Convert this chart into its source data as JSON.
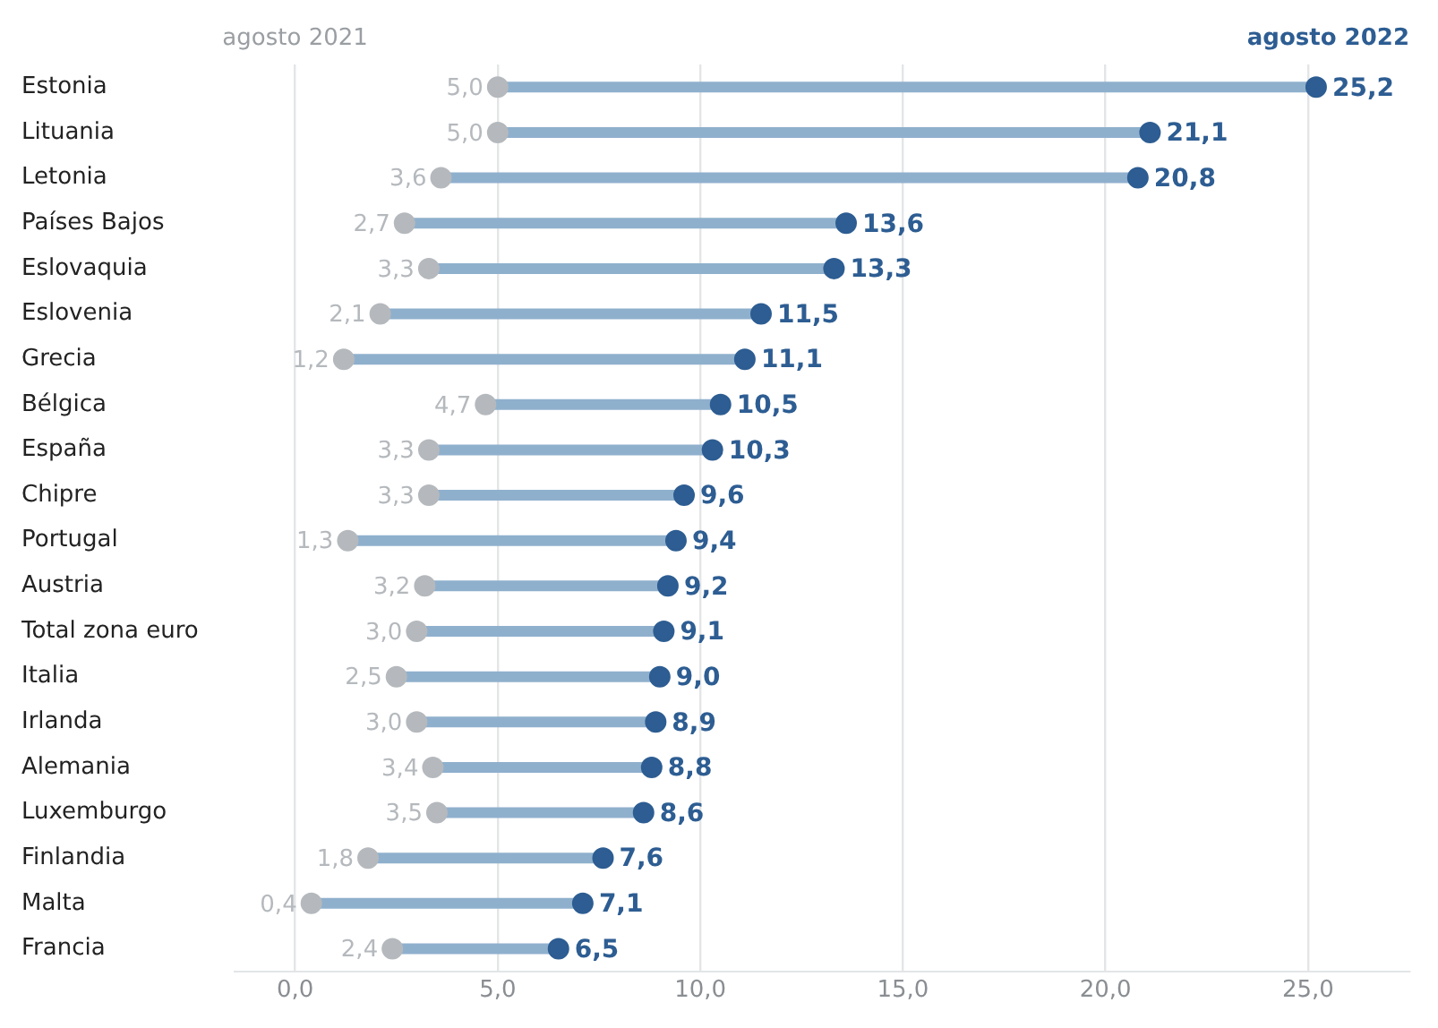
{
  "chart_data": {
    "type": "scatter",
    "orientation": "horizontal",
    "categories": [
      "Estonia",
      "Lituania",
      "Letonia",
      "Países Bajos",
      "Eslovaquia",
      "Eslovenia",
      "Grecia",
      "Bélgica",
      "España",
      "Chipre",
      "Portugal",
      "Austria",
      "Total zona euro",
      "Italia",
      "Irlanda",
      "Alemania",
      "Luxemburgo",
      "Finlandia",
      "Malta",
      "Francia"
    ],
    "series": [
      {
        "name": "agosto 2021",
        "color": "#b5b9bd",
        "values": [
          5.0,
          5.0,
          3.6,
          2.7,
          3.3,
          2.1,
          1.2,
          4.7,
          3.3,
          3.3,
          1.3,
          3.2,
          3.0,
          2.5,
          3.0,
          3.4,
          3.5,
          1.8,
          0.4,
          2.4
        ],
        "value_labels": [
          "5,0",
          "5,0",
          "3,6",
          "2,7",
          "3,3",
          "2,1",
          "1,2",
          "4,7",
          "3,3",
          "3,3",
          "1,3",
          "3,2",
          "3,0",
          "2,5",
          "3,0",
          "3,4",
          "3,5",
          "1,8",
          "0,4",
          "2,4"
        ]
      },
      {
        "name": "agosto 2022",
        "color": "#2d5d92",
        "values": [
          25.2,
          21.1,
          20.8,
          13.6,
          13.3,
          11.5,
          11.1,
          10.5,
          10.3,
          9.6,
          9.4,
          9.2,
          9.1,
          9.0,
          8.9,
          8.8,
          8.6,
          7.6,
          7.1,
          6.5
        ],
        "value_labels": [
          "25,2",
          "21,1",
          "20,8",
          "13,6",
          "13,3",
          "11,5",
          "11,1",
          "10,5",
          "10,3",
          "9,6",
          "9,4",
          "9,2",
          "9,1",
          "9,0",
          "8,9",
          "8,8",
          "8,6",
          "7,6",
          "7,1",
          "6,5"
        ]
      }
    ],
    "xlim": [
      -1.5,
      27.5
    ],
    "xticks": [
      {
        "value": 0,
        "label": "0,0"
      },
      {
        "value": 5,
        "label": "5,0"
      },
      {
        "value": 10,
        "label": "10,0"
      },
      {
        "value": 15,
        "label": "15,0"
      },
      {
        "value": 20,
        "label": "20,0"
      },
      {
        "value": 25,
        "label": "25,0"
      }
    ],
    "grid": "x",
    "legend": false,
    "marker": "circle"
  }
}
